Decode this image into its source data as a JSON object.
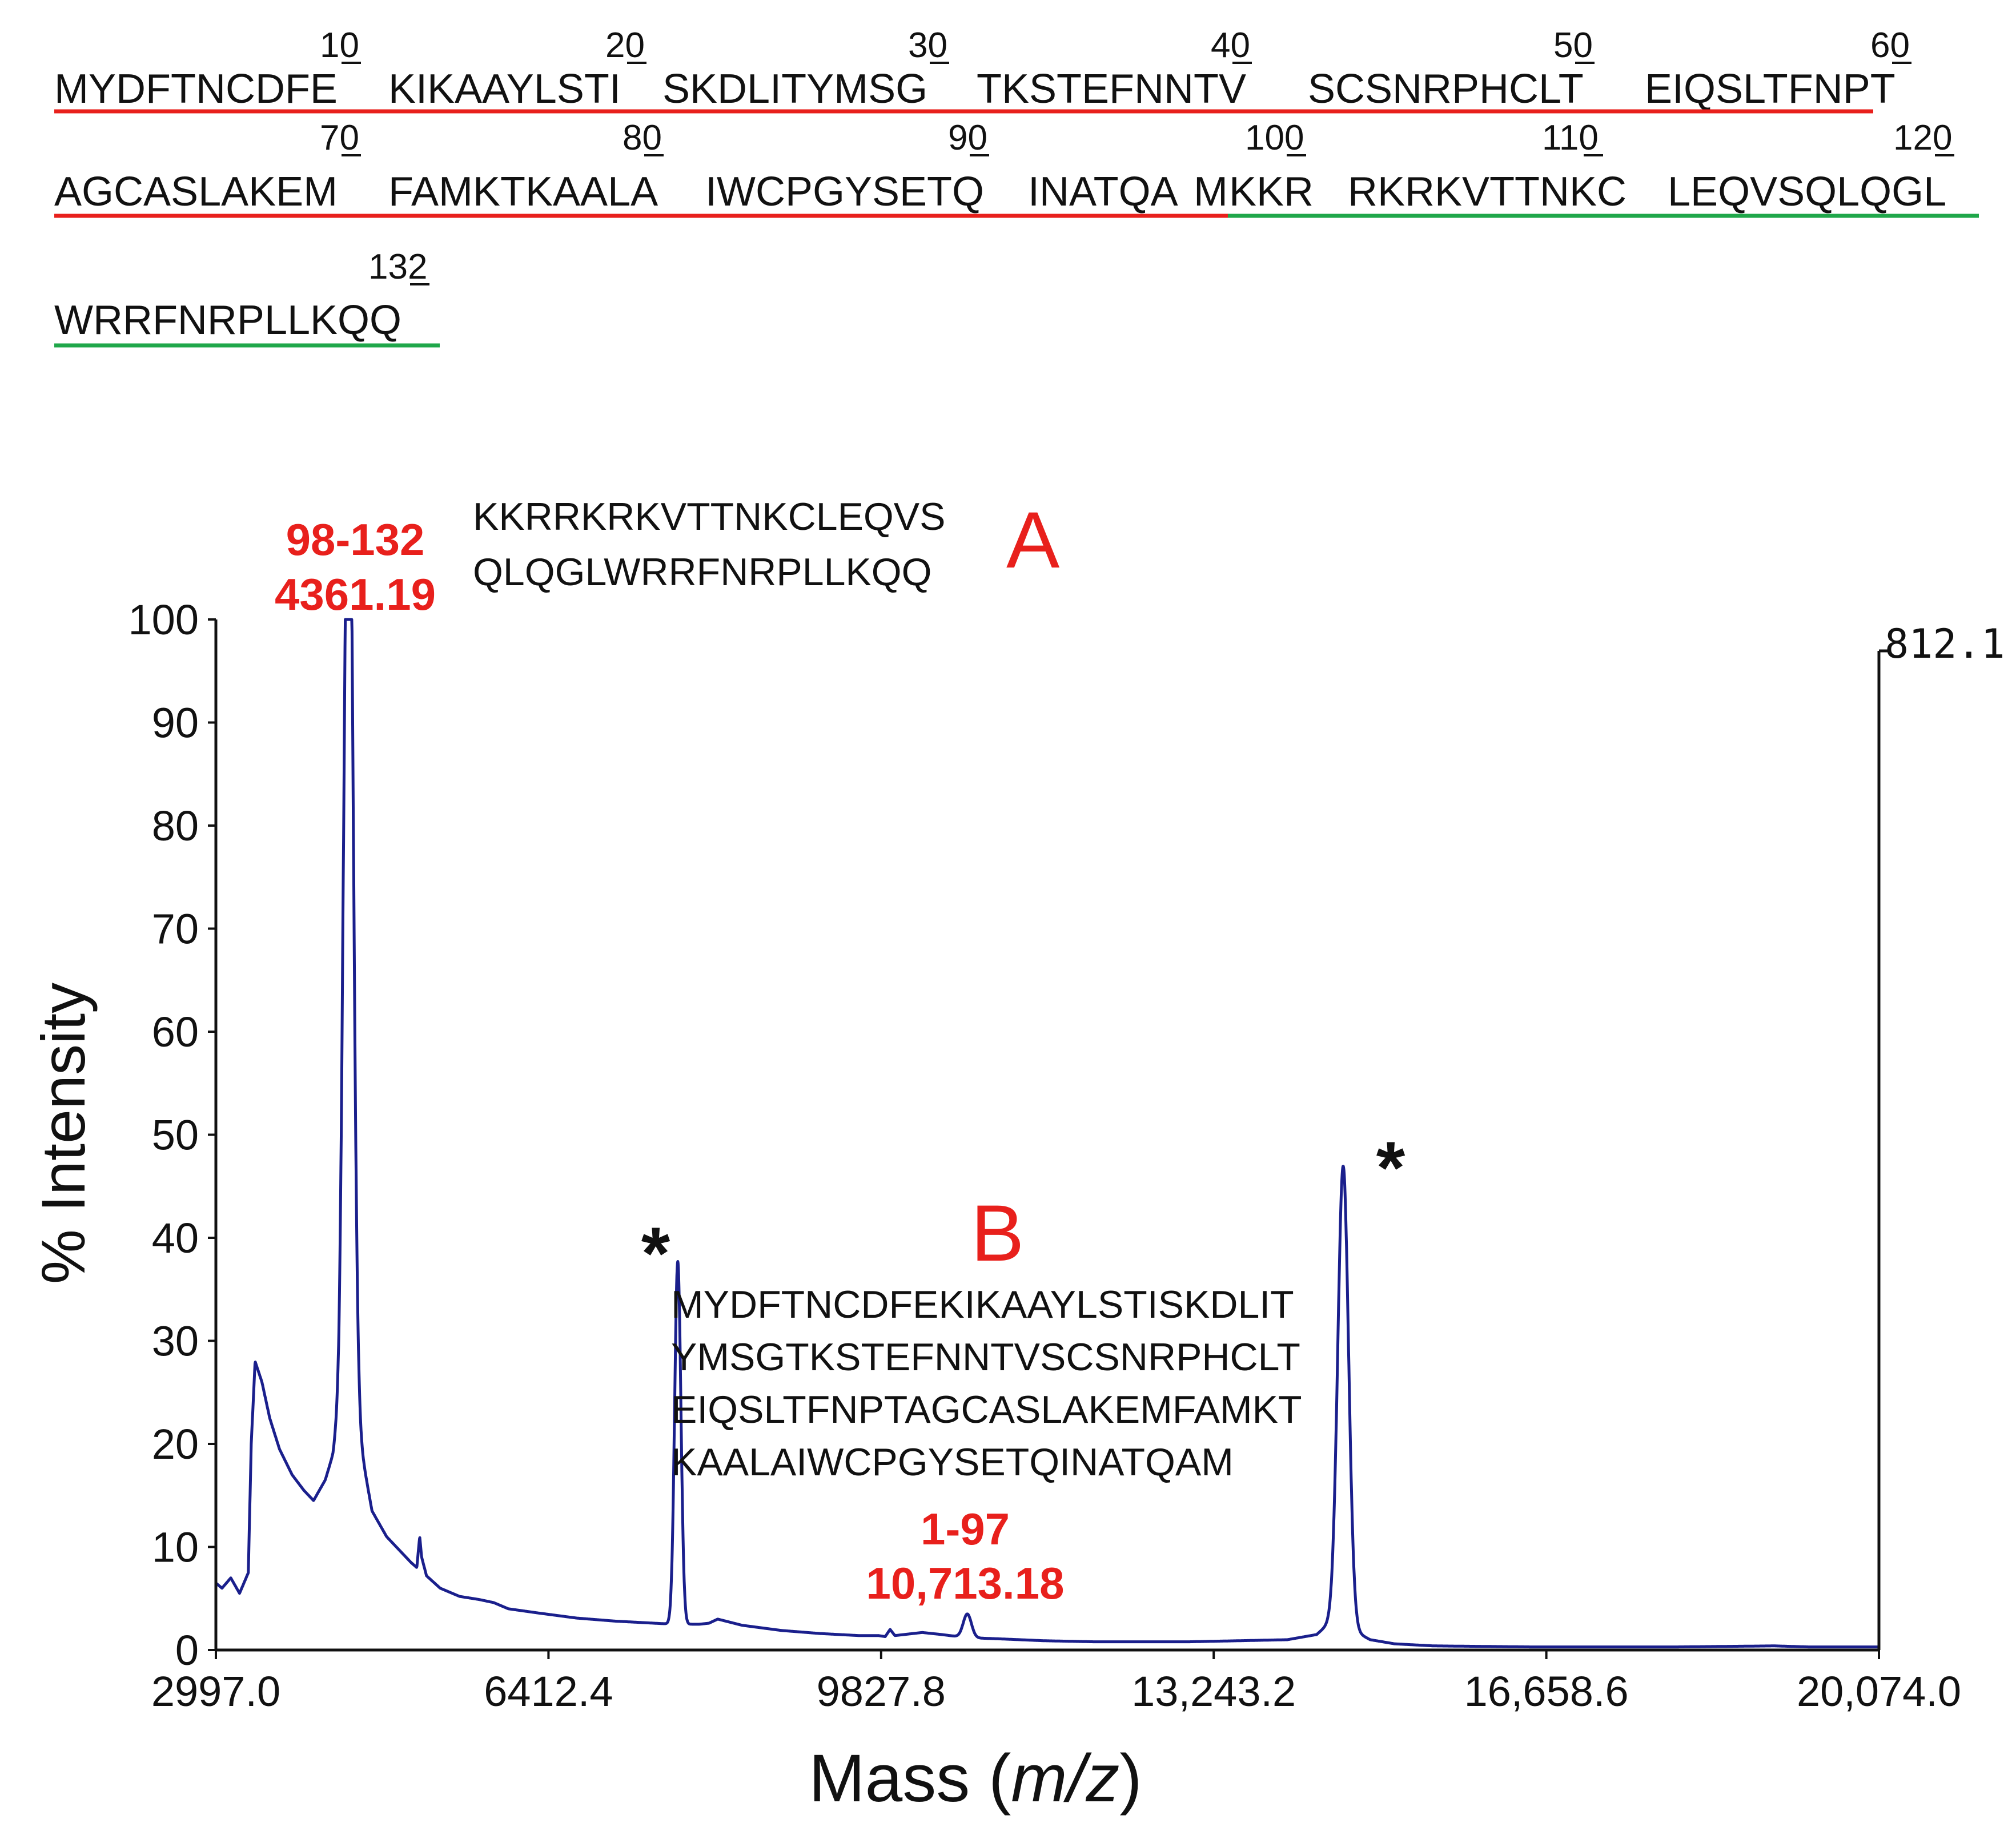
{
  "sequence": {
    "rows": [
      {
        "blocks": [
          "MYDFTNCDFE",
          "KIKAAYLSTI",
          "SKDLITYMSG",
          "TKSTEFNNTV",
          "SCSNRPHCLT",
          "EIQSLTFNPT"
        ],
        "numbers": [
          "10",
          "20",
          "30",
          "40",
          "50",
          "60"
        ]
      },
      {
        "blocks": [
          "AGCASLAKEM",
          "FAMKTKAALA",
          "IWCPGYSETQ",
          "INATQA",
          "M",
          "KKR",
          "RKRKVTTNKC",
          "LEQVSQLQGL"
        ],
        "numbers": [
          "70",
          "80",
          "90",
          "100",
          "110",
          "120"
        ]
      },
      {
        "blocks": [
          "WRRFNRPLLKQQ"
        ],
        "numbers": [
          "132"
        ]
      }
    ],
    "colors": {
      "fragment_1_97": "#e8201c",
      "fragment_98_132": "#1fa74a",
      "highlight": "#e8201c"
    }
  },
  "chart_data": {
    "type": "line",
    "title": "",
    "xlabel": "Mass (m/z)",
    "xlabel_parts": {
      "prefix": "Mass (",
      "italic": "m/z",
      "suffix": ")"
    },
    "ylabel": "% Intensity",
    "xlim": [
      2997.0,
      20074.0
    ],
    "ylim": [
      0,
      100
    ],
    "x_tick_values": [
      2997.0,
      6412.4,
      9827.8,
      13243.2,
      16658.6,
      20074.0
    ],
    "x_tick_labels": [
      "2997.0",
      "6412.4",
      "9827.8",
      "13,243.2",
      "16,658.6",
      "20,074.0"
    ],
    "y_tick_values": [
      0,
      10,
      20,
      30,
      40,
      50,
      60,
      70,
      80,
      90,
      100
    ],
    "y_tick_labels": [
      "0",
      "10",
      "20",
      "30",
      "40",
      "50",
      "60",
      "70",
      "80",
      "90",
      "100"
    ],
    "max_intensity_label": "812.1",
    "series": [
      {
        "name": "spectrum",
        "color": "#1a1f8c",
        "baseline": [
          [
            2997,
            6.5
          ],
          [
            3060,
            6.0
          ],
          [
            3150,
            7.0
          ],
          [
            3240,
            5.5
          ],
          [
            3330,
            7.5
          ],
          [
            3360,
            20.0
          ],
          [
            3400,
            28.0
          ],
          [
            3470,
            26.0
          ],
          [
            3550,
            22.5
          ],
          [
            3650,
            19.5
          ],
          [
            3780,
            17.0
          ],
          [
            3900,
            15.5
          ],
          [
            4000,
            14.5
          ],
          [
            4120,
            16.5
          ],
          [
            4200,
            19.0
          ],
          [
            4260,
            23.0
          ],
          [
            4300,
            30.0
          ],
          [
            4440,
            22.0
          ],
          [
            4600,
            13.5
          ],
          [
            4750,
            11.0
          ],
          [
            4900,
            9.5
          ],
          [
            5000,
            8.5
          ],
          [
            5060,
            8.0
          ],
          [
            5090,
            11.0
          ],
          [
            5110,
            9.0
          ],
          [
            5160,
            7.2
          ],
          [
            5300,
            6.0
          ],
          [
            5500,
            5.2
          ],
          [
            5700,
            4.9
          ],
          [
            5850,
            4.6
          ],
          [
            6000,
            4.0
          ],
          [
            6300,
            3.6
          ],
          [
            6700,
            3.1
          ],
          [
            7100,
            2.8
          ],
          [
            7500,
            2.6
          ],
          [
            7700,
            2.5
          ],
          [
            7960,
            2.5
          ],
          [
            8060,
            2.6
          ],
          [
            8150,
            3.0
          ],
          [
            8400,
            2.4
          ],
          [
            8800,
            1.9
          ],
          [
            9200,
            1.6
          ],
          [
            9600,
            1.4
          ],
          [
            9800,
            1.4
          ],
          [
            9870,
            1.3
          ],
          [
            9920,
            2.0
          ],
          [
            9970,
            1.4
          ],
          [
            10250,
            1.7
          ],
          [
            10450,
            1.5
          ],
          [
            10700,
            1.2
          ],
          [
            11000,
            1.1
          ],
          [
            11500,
            0.9
          ],
          [
            12000,
            0.8
          ],
          [
            12500,
            0.8
          ],
          [
            13000,
            0.8
          ],
          [
            13500,
            0.9
          ],
          [
            14000,
            1.0
          ],
          [
            14300,
            1.5
          ],
          [
            14480,
            3.0
          ],
          [
            14650,
            2.0
          ],
          [
            14850,
            1.0
          ],
          [
            15100,
            0.6
          ],
          [
            15500,
            0.4
          ],
          [
            16500,
            0.3
          ],
          [
            18000,
            0.3
          ],
          [
            19000,
            0.4
          ],
          [
            19350,
            0.3
          ],
          [
            20074,
            0.3
          ]
        ],
        "peaks": [
          {
            "center": 4361.19,
            "height": 98.5,
            "width": 45
          },
          {
            "center": 7740,
            "height": 35.2,
            "width": 32
          },
          {
            "center": 10713.18,
            "height": 2.3,
            "width": 42
          },
          {
            "center": 14573,
            "height": 44.5,
            "width": 55
          }
        ]
      }
    ],
    "annotations": {
      "peak_a": {
        "range": "98-132",
        "mass": "4361.19",
        "letter": "A",
        "sequence_lines": [
          "KKRRKRKVTTNKCLEQVS",
          "QLQGLWRRFNRPLLKQQ"
        ]
      },
      "peak_b": {
        "range": "1-97",
        "mass": "10,713.18",
        "letter": "B",
        "sequence_lines": [
          "MYDFTNCDFEKIKAAYLSTISKDLIT",
          "YMSGTKSTEFNNTVSCSNRPHCLT",
          "EIQSLTFNPTAGCASLAKEMFAMKT",
          "KAALAIWCPGYSETQINATQAM"
        ]
      },
      "star_marks": [
        "*",
        "*"
      ]
    }
  }
}
